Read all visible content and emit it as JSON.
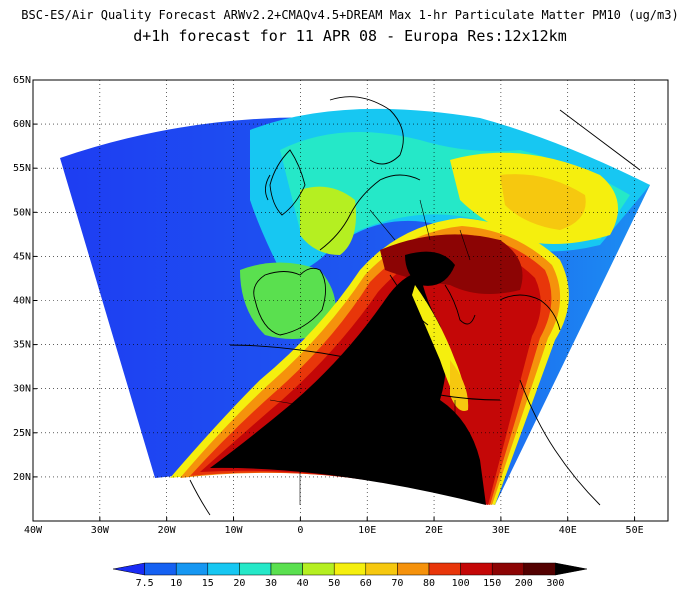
{
  "header": {
    "title": "BSC-ES/Air Quality Forecast ARWv2.2+CMAQv4.5+DREAM Max 1-hr Particulate Matter PM10 (ug/m3)",
    "subtitle": "d+1h forecast for 11 APR 08 - Europa Res:12x12km"
  },
  "map": {
    "lat_labels": [
      "65N",
      "60N",
      "55N",
      "50N",
      "45N",
      "40N",
      "35N",
      "30N",
      "25N",
      "20N"
    ],
    "lon_labels": [
      "40W",
      "30W",
      "20W",
      "10W",
      "0",
      "10E",
      "20E",
      "30E",
      "40E",
      "50E"
    ],
    "lat_range": [
      15,
      65
    ],
    "lon_range": [
      -40,
      55
    ],
    "grid": true
  },
  "colorbar": {
    "labels": [
      "7.5",
      "10",
      "15",
      "20",
      "30",
      "40",
      "50",
      "60",
      "70",
      "80",
      "100",
      "150",
      "200",
      "300"
    ],
    "colors": [
      "#1a2cf5",
      "#1561f2",
      "#1697f2",
      "#17c7f2",
      "#25e8c8",
      "#5ae04f",
      "#b5ef21",
      "#f5ef0e",
      "#f6c80f",
      "#f5920c",
      "#e8360a",
      "#c40707",
      "#8c0404",
      "#530101",
      "#000000"
    ]
  }
}
